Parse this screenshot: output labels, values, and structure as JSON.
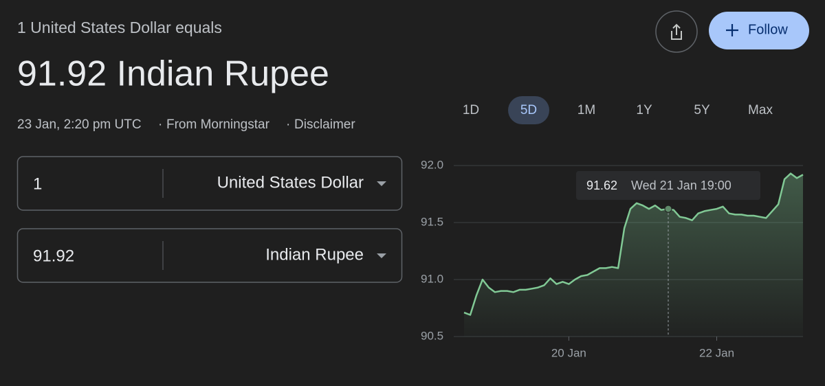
{
  "header": {
    "subtitle": "1 United States Dollar equals",
    "title": "91.92 Indian Rupee",
    "meta": {
      "time": "23 Jan, 2:20 pm UTC",
      "source": "From Morningstar",
      "disclaimer": "Disclaimer"
    }
  },
  "actions": {
    "follow": "Follow"
  },
  "converter": [
    {
      "amount": "1",
      "currency": "United States Dollar"
    },
    {
      "amount": "91.92",
      "currency": "Indian Rupee"
    }
  ],
  "tabs": [
    {
      "label": "1D",
      "selected": false
    },
    {
      "label": "5D",
      "selected": true
    },
    {
      "label": "1M",
      "selected": false
    },
    {
      "label": "1Y",
      "selected": false
    },
    {
      "label": "5Y",
      "selected": false
    },
    {
      "label": "Max",
      "selected": false
    }
  ],
  "chart_data": {
    "type": "line",
    "color": "#81c995",
    "grid": true,
    "categories": [
      null,
      null,
      null,
      null,
      null,
      null,
      null,
      null,
      null,
      null,
      null,
      null,
      null,
      null,
      null,
      null,
      null,
      "20 Jan",
      null,
      null,
      null,
      null,
      null,
      null,
      null,
      null,
      null,
      null,
      null,
      null,
      null,
      null,
      null,
      null,
      null,
      null,
      null,
      null,
      null,
      null,
      null,
      "22 Jan",
      null,
      null,
      null,
      null,
      null,
      null,
      null,
      null,
      null,
      null,
      null,
      null,
      null,
      null
    ],
    "values": [
      90.71,
      90.69,
      90.86,
      91.0,
      90.93,
      90.89,
      90.9,
      90.9,
      90.89,
      90.91,
      90.91,
      90.92,
      90.93,
      90.95,
      91.01,
      90.96,
      90.98,
      90.96,
      91.0,
      91.03,
      91.04,
      91.07,
      91.1,
      91.1,
      91.11,
      91.1,
      91.45,
      91.62,
      91.67,
      91.65,
      91.62,
      91.65,
      91.61,
      91.62,
      91.61,
      91.55,
      91.54,
      91.52,
      91.58,
      91.6,
      91.61,
      91.62,
      91.64,
      91.58,
      91.57,
      91.57,
      91.56,
      91.56,
      91.55,
      91.54,
      91.6,
      91.66,
      91.88,
      91.93,
      91.89,
      91.92
    ],
    "ylim": [
      90.5,
      92.0
    ],
    "yticks": [
      {
        "value": 90.5,
        "label": "90.5"
      },
      {
        "value": 91,
        "label": "91.0"
      },
      91.5,
      {
        "value": 92,
        "label": "92.0"
      }
    ],
    "tooltip": {
      "value": 91.62,
      "time": "Wed 21 Jan 19:00"
    }
  }
}
